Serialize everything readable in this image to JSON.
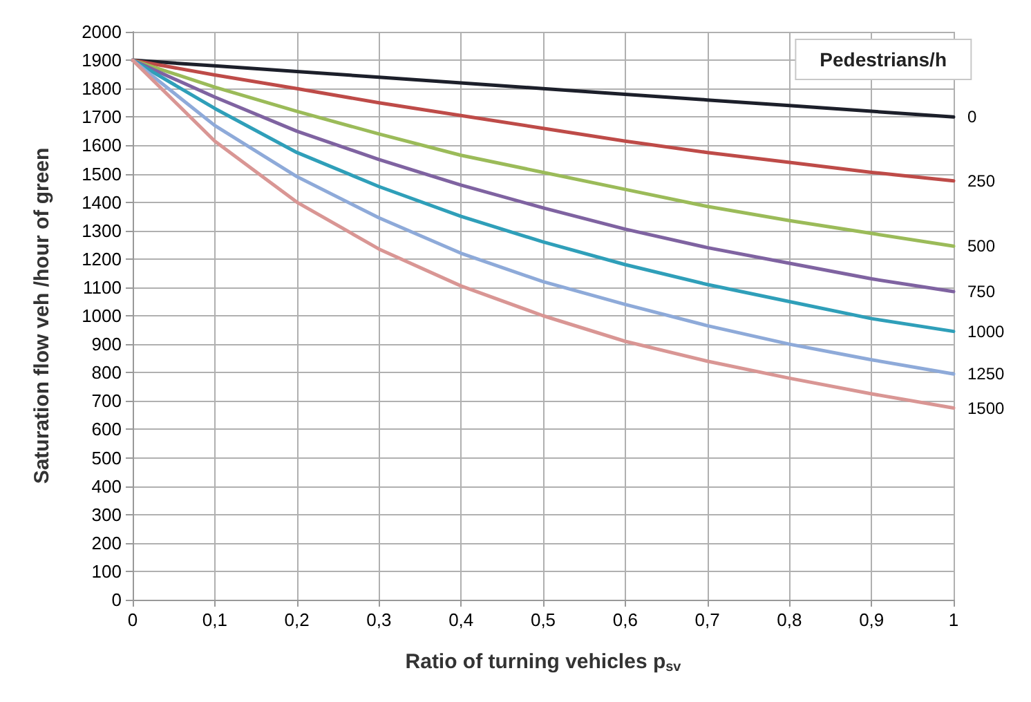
{
  "chart_data": {
    "type": "line",
    "xlabel": "Ratio of turning vehicles p$_{sv}$",
    "ylabel": "Saturation flow veh /hour of green",
    "legend_title": "Pedestrians/h",
    "x": [
      0,
      0.1,
      0.2,
      0.3,
      0.4,
      0.5,
      0.6,
      0.7,
      0.8,
      0.9,
      1
    ],
    "series": [
      {
        "name": "0",
        "color": "#1c1f2a",
        "values": [
          1900,
          1880,
          1860,
          1840,
          1820,
          1800,
          1780,
          1760,
          1740,
          1720,
          1700
        ]
      },
      {
        "name": "250",
        "color": "#be4b48",
        "values": [
          1900,
          1848,
          1800,
          1750,
          1705,
          1660,
          1615,
          1575,
          1540,
          1505,
          1475
        ]
      },
      {
        "name": "500",
        "color": "#9bbb59",
        "values": [
          1900,
          1805,
          1720,
          1640,
          1565,
          1505,
          1445,
          1385,
          1335,
          1290,
          1245
        ]
      },
      {
        "name": "750",
        "color": "#7f63a1",
        "values": [
          1900,
          1770,
          1650,
          1550,
          1460,
          1380,
          1305,
          1240,
          1185,
          1130,
          1085
        ]
      },
      {
        "name": "1000",
        "color": "#2f9fb9",
        "values": [
          1900,
          1730,
          1575,
          1455,
          1350,
          1260,
          1180,
          1110,
          1050,
          990,
          945
        ]
      },
      {
        "name": "1250",
        "color": "#8eaad9",
        "values": [
          1900,
          1670,
          1490,
          1345,
          1220,
          1120,
          1040,
          965,
          900,
          845,
          795
        ]
      },
      {
        "name": "1500",
        "color": "#d99694",
        "values": [
          1900,
          1615,
          1400,
          1235,
          1105,
          1000,
          910,
          840,
          780,
          725,
          675
        ]
      }
    ],
    "xlim": [
      0,
      1
    ],
    "xticks": [
      0,
      {
        "value": 0.1,
        "label": "0,1"
      },
      {
        "value": 0.2,
        "label": "0,2"
      },
      {
        "value": 0.3,
        "label": "0,3"
      },
      {
        "value": 0.4,
        "label": "0,4"
      },
      {
        "value": 0.5,
        "label": "0,5"
      },
      {
        "value": 0.6,
        "label": "0,6"
      },
      {
        "value": 0.7,
        "label": "0,7"
      },
      {
        "value": 0.8,
        "label": "0,8"
      },
      {
        "value": 0.9,
        "label": "0,9"
      },
      1
    ],
    "ylim": [
      0,
      2000
    ],
    "yticks": [
      0,
      100,
      200,
      300,
      400,
      500,
      600,
      700,
      800,
      900,
      1000,
      1100,
      1200,
      1300,
      1400,
      1500,
      1600,
      1700,
      1800,
      1900,
      2000
    ],
    "grid": true,
    "marker": "none",
    "line_style": "solid"
  }
}
